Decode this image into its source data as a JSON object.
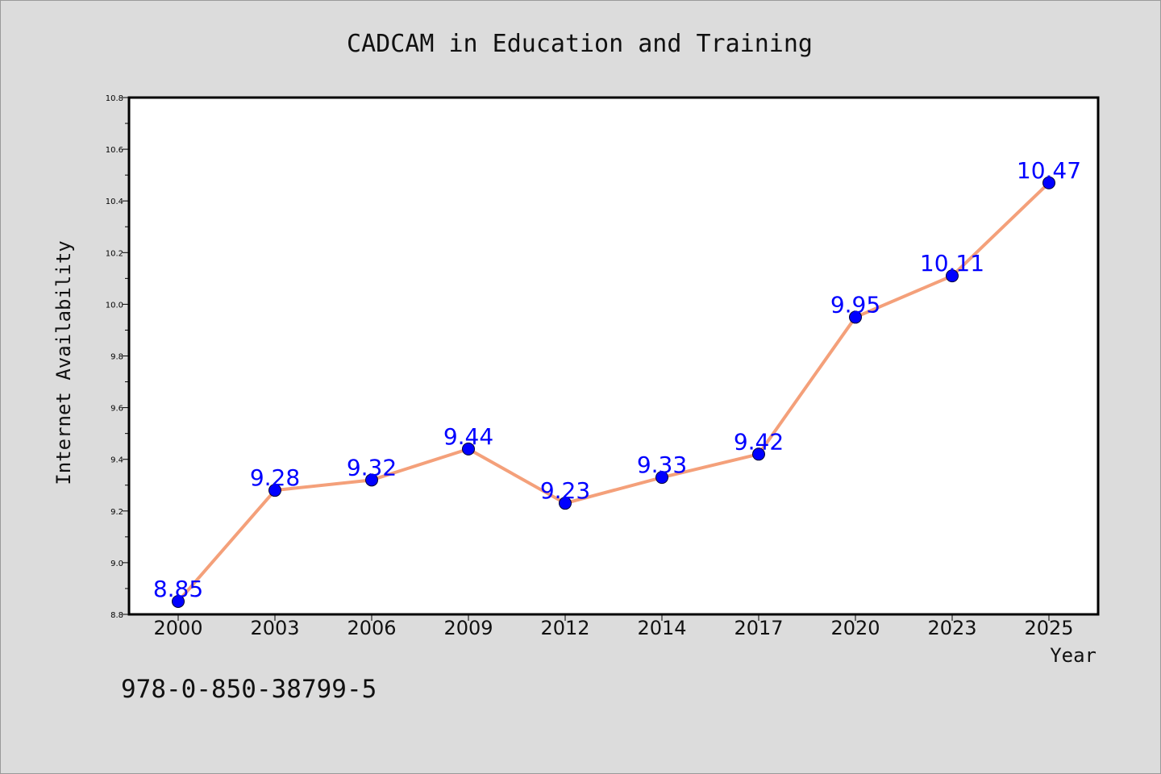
{
  "chart_data": {
    "type": "line",
    "title": "CADCAM in Education and Training",
    "xlabel": "Year",
    "ylabel": "Internet Availability",
    "categories": [
      "2000",
      "2003",
      "2006",
      "2009",
      "2012",
      "2014",
      "2017",
      "2020",
      "2023",
      "2025"
    ],
    "series": [
      {
        "values": [
          8.85,
          9.28,
          9.32,
          9.44,
          9.23,
          9.33,
          9.42,
          9.95,
          10.11,
          10.47
        ],
        "line_color": "#f4a07a",
        "marker_color": "#0000ff",
        "label_color": "#0000ff"
      }
    ],
    "data_labels": [
      "8.85",
      "9.28",
      "9.32",
      "9.44",
      "9.23",
      "9.33",
      "9.42",
      "9.95",
      "10.11",
      "10.47"
    ],
    "ylim": [
      8.8,
      10.8
    ],
    "y_ticks": [
      "8.8",
      "9.0",
      "9.2",
      "9.4",
      "9.6",
      "9.8",
      "10.0",
      "10.2",
      "10.4",
      "10.6",
      "10.8"
    ],
    "grid": false,
    "legend": "none"
  },
  "footer_text": "978-0-850-38799-5",
  "colors": {
    "background": "#dcdcdc",
    "plot_background": "#ffffff",
    "axis": "#000000"
  }
}
